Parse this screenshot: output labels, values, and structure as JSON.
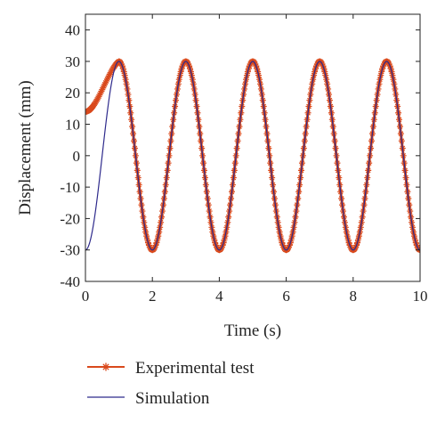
{
  "chart_data": {
    "type": "line",
    "title": "",
    "xlabel": "Time (s)",
    "ylabel": "Displacement (mm)",
    "xlim": [
      0,
      10
    ],
    "ylim": [
      -40,
      45
    ],
    "xticks": [
      0,
      2,
      4,
      6,
      8,
      10
    ],
    "yticks": [
      -40,
      -30,
      -20,
      -10,
      0,
      10,
      20,
      30,
      40
    ],
    "grid": false,
    "legend_position": "bottom",
    "series": [
      {
        "name": "Experimental test",
        "color": "#d9491c",
        "marker": "asterisk",
        "amplitude": 30,
        "period": 2,
        "start_value": 14,
        "first_peak_time": 1.0,
        "x": [
          0,
          0.2,
          0.4,
          0.6,
          0.8,
          1.0,
          2.0,
          3.0,
          4.0,
          5.0,
          6.0,
          7.0,
          8.0,
          9.0,
          10.0
        ],
        "y": [
          14,
          15,
          18,
          23,
          28,
          30,
          -30,
          30,
          -30,
          30,
          -30,
          30,
          -30,
          30,
          -30
        ]
      },
      {
        "name": "Simulation",
        "color": "#2e2a8c",
        "marker": "none",
        "amplitude": 30,
        "period": 2,
        "start_value": -30,
        "first_peak_time": 1.0,
        "x": [
          0,
          1.0,
          2.0,
          3.0,
          4.0,
          5.0,
          6.0,
          7.0,
          8.0,
          9.0,
          10.0
        ],
        "y": [
          -30,
          30,
          -30,
          30,
          -30,
          30,
          -30,
          30,
          -30,
          30,
          -30
        ]
      }
    ]
  }
}
